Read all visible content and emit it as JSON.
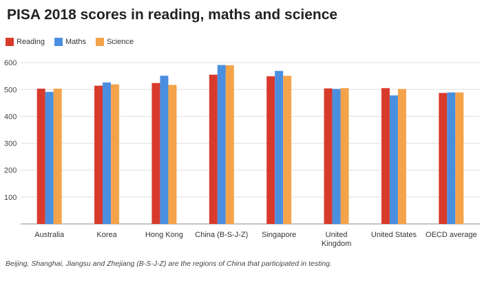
{
  "chart_data": {
    "type": "bar",
    "title": "PISA 2018 scores in reading, maths and science",
    "xlabel": "",
    "ylabel": "",
    "ylim": [
      0,
      620
    ],
    "yticks": [
      "100",
      "200",
      "300",
      "400",
      "500",
      "600"
    ],
    "grid": true,
    "legend_position": "top-left",
    "categories": [
      [
        "Australia"
      ],
      [
        "Korea"
      ],
      [
        "Hong Kong"
      ],
      [
        "China (B-S-J-Z)"
      ],
      [
        "Singapore"
      ],
      [
        "United",
        "Kingdom"
      ],
      [
        "United States"
      ],
      [
        "OECD average"
      ]
    ],
    "series": [
      {
        "name": "Reading",
        "color": "#d83a2c",
        "values": [
          503,
          514,
          524,
          555,
          549,
          504,
          505,
          487
        ]
      },
      {
        "name": "Maths",
        "color": "#4a8ee0",
        "values": [
          491,
          526,
          551,
          591,
          569,
          502,
          478,
          489
        ]
      },
      {
        "name": "Science",
        "color": "#f5a34b",
        "values": [
          503,
          519,
          517,
          590,
          551,
          505,
          502,
          489
        ]
      }
    ],
    "caption": "Beijing, Shanghai, Jiangsu and Zhejiang (B-S-J-Z) are the regions of China that participated in testing."
  }
}
